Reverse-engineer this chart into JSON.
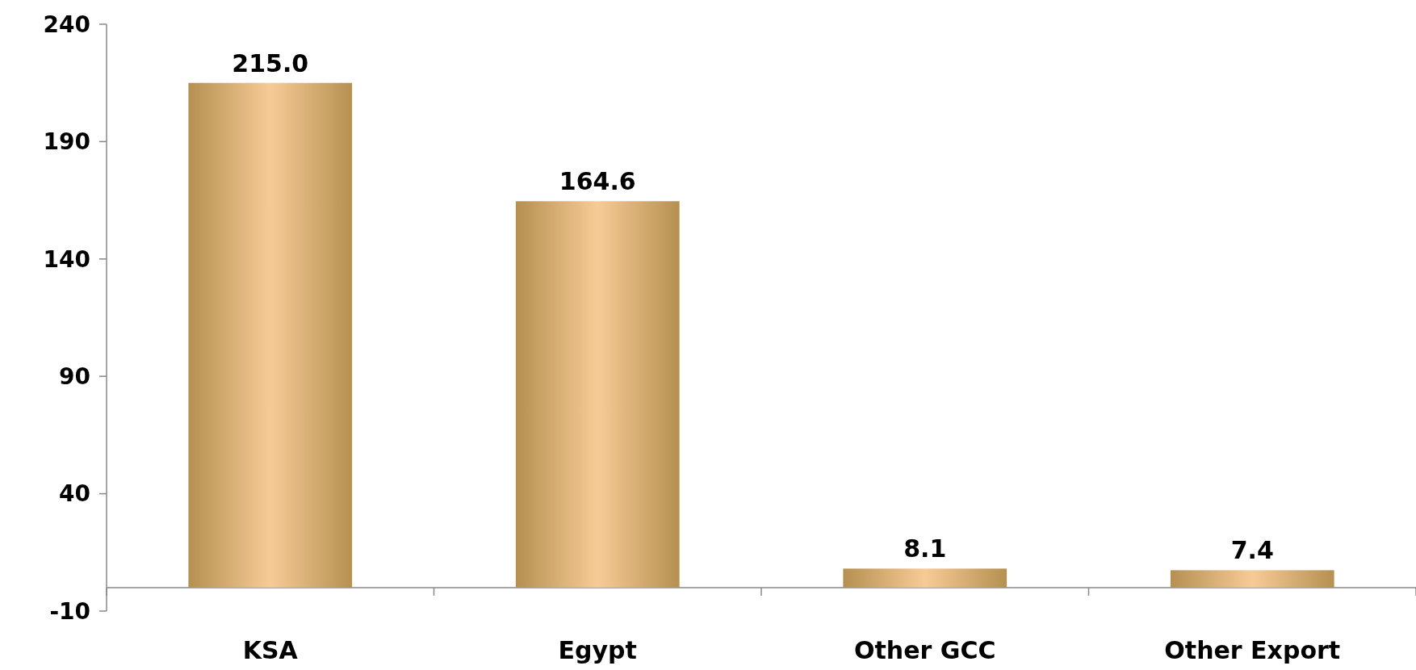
{
  "chart_data": {
    "type": "bar",
    "categories": [
      "KSA",
      "Egypt",
      "Other GCC",
      "Other Export"
    ],
    "values": [
      215.0,
      164.6,
      8.1,
      7.4
    ],
    "color": "#c9a05a",
    "ylim": [
      -10,
      240
    ],
    "yticks": [
      -10,
      40,
      90,
      140,
      190,
      240
    ],
    "value_labels": [
      "215.0",
      "164.6",
      "8.1",
      "7.4"
    ],
    "grid": false
  }
}
